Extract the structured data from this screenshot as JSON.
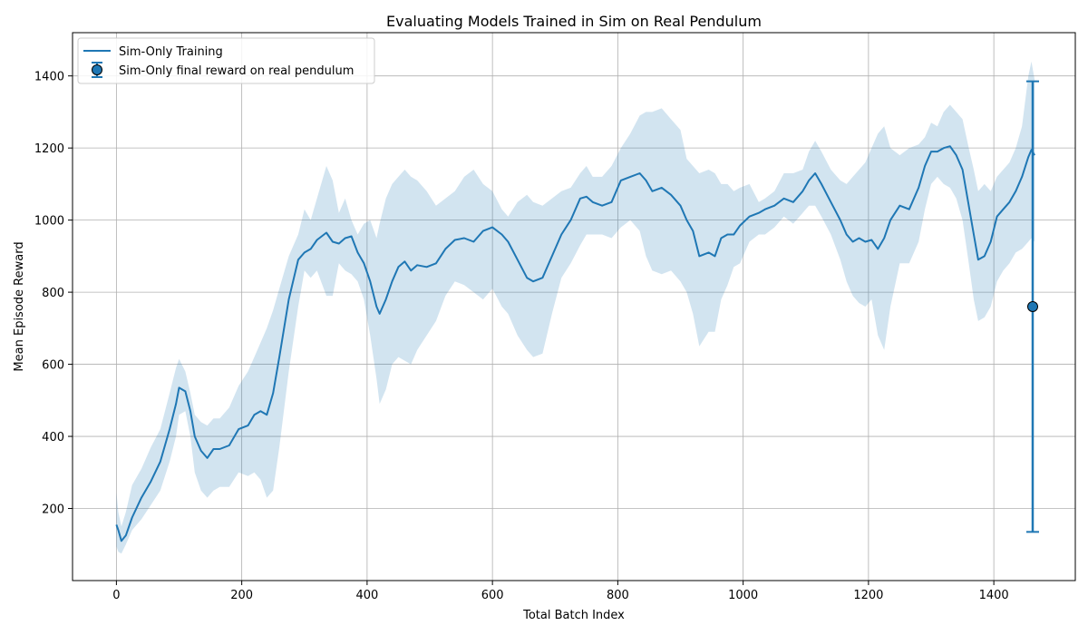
{
  "chart_data": {
    "type": "line",
    "title": "Evaluating Models Trained in Sim on Real Pendulum",
    "xlabel": "Total Batch Index",
    "ylabel": "Mean Episode Reward",
    "xlim": [
      -70,
      1530
    ],
    "ylim": [
      0,
      1520
    ],
    "x_ticks": [
      0,
      200,
      400,
      600,
      800,
      1000,
      1200,
      1400
    ],
    "y_ticks": [
      200,
      400,
      600,
      800,
      1000,
      1200,
      1400
    ],
    "grid": true,
    "legend_position": "top-left",
    "series": [
      {
        "name": "Sim-Only Training",
        "color": "#1f77b4",
        "x": [
          0,
          3,
          8,
          15,
          25,
          40,
          55,
          70,
          85,
          95,
          100,
          110,
          118,
          125,
          135,
          145,
          155,
          165,
          180,
          195,
          210,
          220,
          230,
          240,
          250,
          260,
          275,
          290,
          300,
          310,
          320,
          335,
          345,
          355,
          365,
          375,
          385,
          395,
          405,
          415,
          420,
          430,
          440,
          450,
          460,
          470,
          480,
          495,
          510,
          525,
          540,
          555,
          570,
          585,
          600,
          615,
          625,
          640,
          655,
          665,
          680,
          695,
          710,
          725,
          740,
          750,
          760,
          775,
          790,
          805,
          820,
          835,
          845,
          855,
          870,
          885,
          900,
          910,
          920,
          930,
          945,
          955,
          965,
          975,
          985,
          995,
          1010,
          1025,
          1035,
          1050,
          1065,
          1080,
          1095,
          1105,
          1115,
          1125,
          1140,
          1155,
          1165,
          1175,
          1185,
          1195,
          1205,
          1215,
          1225,
          1235,
          1250,
          1265,
          1280,
          1290,
          1300,
          1310,
          1320,
          1330,
          1340,
          1350,
          1360,
          1368,
          1375,
          1385,
          1395,
          1405,
          1415,
          1425,
          1435,
          1445,
          1455,
          1460,
          1465
        ],
        "mean": [
          155,
          140,
          110,
          125,
          175,
          230,
          275,
          330,
          420,
          490,
          535,
          525,
          470,
          400,
          360,
          340,
          365,
          365,
          375,
          420,
          430,
          460,
          470,
          460,
          520,
          620,
          780,
          890,
          910,
          920,
          945,
          965,
          940,
          935,
          950,
          955,
          910,
          880,
          830,
          760,
          740,
          780,
          830,
          870,
          885,
          860,
          875,
          870,
          880,
          920,
          945,
          950,
          940,
          970,
          980,
          960,
          940,
          890,
          840,
          830,
          840,
          900,
          960,
          1000,
          1060,
          1065,
          1050,
          1040,
          1050,
          1110,
          1120,
          1130,
          1110,
          1080,
          1090,
          1070,
          1040,
          1000,
          970,
          900,
          910,
          900,
          950,
          960,
          960,
          985,
          1010,
          1020,
          1030,
          1040,
          1060,
          1050,
          1080,
          1110,
          1130,
          1100,
          1050,
          1000,
          960,
          940,
          950,
          940,
          945,
          920,
          950,
          1000,
          1040,
          1030,
          1090,
          1150,
          1190,
          1190,
          1200,
          1205,
          1180,
          1140,
          1040,
          960,
          890,
          900,
          940,
          1010,
          1030,
          1050,
          1080,
          1120,
          1175,
          1195,
          1180
        ],
        "upper": [
          245,
          190,
          150,
          190,
          265,
          310,
          370,
          420,
          520,
          590,
          615,
          580,
          520,
          460,
          440,
          430,
          450,
          450,
          480,
          540,
          580,
          620,
          660,
          700,
          750,
          810,
          900,
          960,
          1030,
          1000,
          1060,
          1150,
          1110,
          1020,
          1060,
          1000,
          960,
          990,
          1000,
          950,
          990,
          1060,
          1100,
          1120,
          1140,
          1120,
          1110,
          1080,
          1040,
          1060,
          1080,
          1120,
          1140,
          1100,
          1080,
          1030,
          1010,
          1050,
          1070,
          1050,
          1040,
          1060,
          1080,
          1090,
          1130,
          1150,
          1120,
          1120,
          1150,
          1200,
          1240,
          1290,
          1300,
          1300,
          1310,
          1280,
          1250,
          1170,
          1150,
          1130,
          1140,
          1130,
          1100,
          1100,
          1080,
          1090,
          1100,
          1050,
          1060,
          1080,
          1130,
          1130,
          1140,
          1190,
          1220,
          1190,
          1140,
          1110,
          1100,
          1120,
          1140,
          1160,
          1200,
          1240,
          1260,
          1200,
          1180,
          1200,
          1210,
          1230,
          1270,
          1260,
          1300,
          1320,
          1300,
          1280,
          1200,
          1140,
          1080,
          1100,
          1080,
          1120,
          1140,
          1160,
          1200,
          1260,
          1400,
          1440,
          1390
        ],
        "lower": [
          95,
          80,
          75,
          100,
          140,
          170,
          210,
          250,
          330,
          400,
          460,
          470,
          400,
          300,
          250,
          230,
          250,
          260,
          260,
          300,
          290,
          300,
          280,
          230,
          250,
          370,
          580,
          760,
          860,
          840,
          860,
          790,
          790,
          880,
          860,
          850,
          830,
          780,
          680,
          560,
          490,
          530,
          600,
          620,
          610,
          600,
          640,
          680,
          720,
          790,
          830,
          820,
          800,
          780,
          810,
          760,
          740,
          680,
          640,
          620,
          630,
          740,
          840,
          880,
          930,
          960,
          960,
          960,
          950,
          980,
          1000,
          970,
          900,
          860,
          850,
          860,
          830,
          800,
          740,
          650,
          690,
          690,
          780,
          820,
          870,
          880,
          940,
          960,
          960,
          980,
          1010,
          990,
          1020,
          1040,
          1040,
          1010,
          960,
          890,
          830,
          790,
          770,
          760,
          780,
          680,
          640,
          760,
          880,
          880,
          940,
          1030,
          1100,
          1120,
          1100,
          1090,
          1060,
          1000,
          880,
          780,
          720,
          730,
          760,
          830,
          860,
          880,
          910,
          920,
          940,
          950,
          940
        ]
      }
    ],
    "errorbar": {
      "name": "Sim-Only final reward on real pendulum",
      "x": 1462,
      "y": 760,
      "ymin": 135,
      "ymax": 1385,
      "color": "#1f77b4"
    }
  }
}
